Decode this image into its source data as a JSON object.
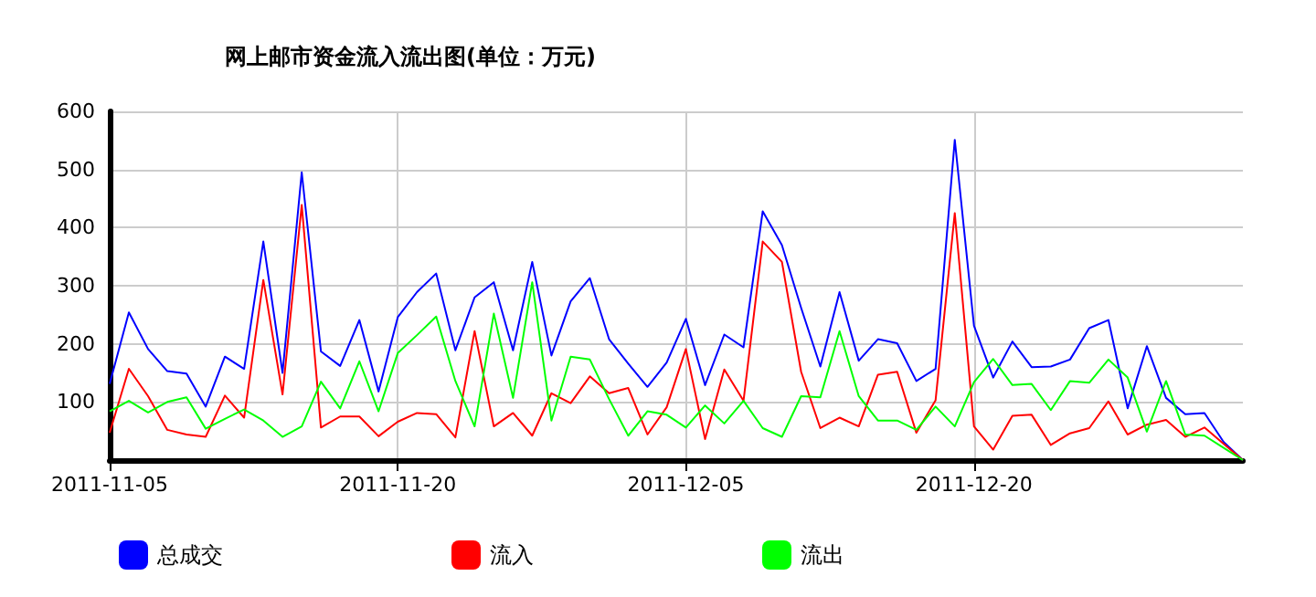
{
  "chart_data": {
    "type": "line",
    "title": "网上邮市资金流入流出图(单位：万元)",
    "x": [
      "2011-11-05",
      "2011-11-06",
      "2011-11-07",
      "2011-11-08",
      "2011-11-09",
      "2011-11-10",
      "2011-11-11",
      "2011-11-12",
      "2011-11-13",
      "2011-11-14",
      "2011-11-15",
      "2011-11-16",
      "2011-11-17",
      "2011-11-18",
      "2011-11-19",
      "2011-11-20",
      "2011-11-21",
      "2011-11-22",
      "2011-11-23",
      "2011-11-24",
      "2011-11-25",
      "2011-11-26",
      "2011-11-27",
      "2011-11-28",
      "2011-11-29",
      "2011-11-30",
      "2011-12-01",
      "2011-12-02",
      "2011-12-03",
      "2011-12-04",
      "2011-12-05",
      "2011-12-06",
      "2011-12-07",
      "2011-12-08",
      "2011-12-09",
      "2011-12-10",
      "2011-12-11",
      "2011-12-12",
      "2011-12-13",
      "2011-12-14",
      "2011-12-15",
      "2011-12-16",
      "2011-12-17",
      "2011-12-18",
      "2011-12-19",
      "2011-12-20",
      "2011-12-21",
      "2011-12-22",
      "2011-12-23",
      "2011-12-24",
      "2011-12-25",
      "2011-12-26",
      "2011-12-27",
      "2011-12-28",
      "2011-12-29",
      "2011-12-30",
      "2011-12-31",
      "2012-01-01",
      "2012-01-02",
      "2012-01-03"
    ],
    "series": [
      {
        "name": "总成交",
        "color": "#0000ff",
        "values": [
          131,
          254,
          191,
          153,
          149,
          92,
          178,
          157,
          376,
          150,
          495,
          187,
          162,
          241,
          118,
          246,
          289,
          321,
          189,
          280,
          306,
          189,
          341,
          180,
          273,
          313,
          208,
          166,
          126,
          168,
          243,
          129,
          216,
          194,
          428,
          370,
          262,
          161,
          289,
          171,
          208,
          201,
          136,
          157,
          551,
          231,
          142,
          204,
          160,
          161,
          173,
          227,
          241,
          89,
          196,
          107,
          79,
          81,
          31,
          0
        ]
      },
      {
        "name": "流入",
        "color": "#ff0000",
        "values": [
          47,
          157,
          110,
          52,
          44,
          40,
          111,
          73,
          310,
          113,
          439,
          56,
          75,
          75,
          41,
          66,
          81,
          79,
          39,
          222,
          58,
          81,
          42,
          115,
          98,
          144,
          115,
          124,
          44,
          91,
          191,
          36,
          156,
          102,
          376,
          341,
          152,
          55,
          73,
          58,
          147,
          152,
          47,
          103,
          425,
          58,
          18,
          76,
          78,
          26,
          46,
          55,
          101,
          44,
          61,
          69,
          40,
          56,
          28,
          0
        ]
      },
      {
        "name": "流出",
        "color": "#00ff00",
        "values": [
          84,
          102,
          82,
          100,
          108,
          54,
          71,
          87,
          68,
          40,
          58,
          135,
          89,
          170,
          84,
          184,
          215,
          247,
          136,
          58,
          252,
          107,
          306,
          68,
          178,
          173,
          105,
          42,
          84,
          78,
          56,
          94,
          63,
          102,
          55,
          40,
          110,
          108,
          222,
          110,
          68,
          68,
          52,
          92,
          58,
          134,
          174,
          129,
          131,
          86,
          136,
          133,
          173,
          142,
          49,
          136,
          44,
          42,
          21,
          0
        ]
      }
    ],
    "xlim": [
      "2011-11-05",
      "2012-01-03"
    ],
    "xticks": [
      "2011-11-05",
      "2011-11-20",
      "2011-12-05",
      "2011-12-20"
    ],
    "ylim": [
      0,
      600
    ],
    "yticks": [
      {
        "value": 0,
        "label": null
      },
      100,
      200,
      300,
      400,
      500,
      600
    ],
    "grid": true,
    "legend": "bottom",
    "marker": "none",
    "line_style": "solid"
  }
}
